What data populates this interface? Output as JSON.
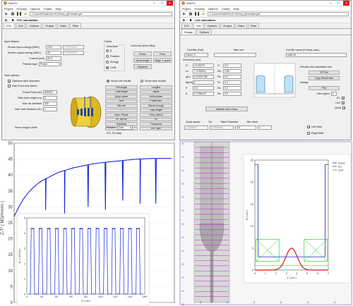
{
  "left": {
    "title": "DemTL",
    "menu": [
      "Project",
      "Process",
      "Options",
      "Charts",
      "Help"
    ],
    "path": "C:\\Users\\Public\\DemTL\\Setup_g\\Example.gdf",
    "section": "DTL calculation",
    "tabs": [
      "DTL",
      "Cell",
      "Options",
      "Output",
      "Data",
      "Files"
    ],
    "input_beams": "Input Beams",
    "kin_in_label": "Kinetic input energy (MeV)",
    "kin_in": "3.50",
    "kin_in_b": "0.28759000",
    "kin_out_label": "Kinetic output energy (MeV)",
    "kin_out": "40",
    "kin_out_b": "0.28053923",
    "current_label": "Current (mA)",
    "current": "62.5",
    "particle_label": "Particle type",
    "particle": "Proton",
    "charts": "Charts",
    "abscisse": "Abscisse",
    "abscisse_opts": [
      "β",
      "Position",
      "Energy",
      "Cells"
    ],
    "cell_lens": "Cell Lens (from files)",
    "cell_lens_btns": [
      "Phase",
      "Field",
      "Quad length",
      "Magn. L quad",
      "Kilpatrick",
      ""
    ],
    "tank_options": "Tank options",
    "opt_tank": "Optimize tank diameter",
    "add_stems": "Add Front end stems",
    "power_label": "Power/Tank (W)",
    "power": "000000",
    "max_len_label": "Max tank length (m)",
    "max_len": "8",
    "max_cell_label": "Max nb cell/tank",
    "max_cell": "300",
    "inter_label": "Inter tank distance (2l x l)",
    "inter": "1",
    "stem_label": "Stem Height Limits",
    "show_cell": "Show cell results",
    "show_tank": "Show tank results",
    "result_btns": [
      "Cell length",
      "Lengths",
      "Tube length",
      "Alpha",
      "Quad space",
      "Delta phase",
      "Drift",
      "Phase adv.",
      "Nbr cell",
      "Stored energy",
      "?",
      "Gap length",
      "Sync. Phase",
      "Freq. (stem)",
      "Ph. adv.ch",
      "Eo",
      "Kilpatrick",
      "Frequency",
      "Eo",
      "Acc. gain"
    ],
    "powers_label": "Powers",
    "powers": "Total",
    "dtl_map": "DTL Eo Map"
  },
  "right": {
    "title": "DemTL",
    "menu": [
      "Project",
      "Process",
      "Options",
      "Charts",
      "Help"
    ],
    "path": "C:\\Users\\Public\\DemTL\\Setup_g\\Example.gdf",
    "section": "Cell calculation",
    "tabs": [
      "DTL",
      "Cell",
      "Options",
      "Output",
      "Data",
      "Files"
    ],
    "design_tabs": [
      "Design",
      "Options"
    ],
    "cell_title": "Cell title (Full)",
    "cell_title_val": "Calcul_3",
    "filter_label": "filter cell",
    "file_name_label": "Cell file name (6 chars max)",
    "file_name_val": "cell0.fsf",
    "geometry": "Geometry (cm)",
    "geo": [
      [
        "D",
        "24.03075",
        "G",
        "0.0"
      ],
      [
        "Lc",
        "7.4788032",
        "Rb",
        "0.65"
      ],
      [
        "g/Lc",
        "0.22001798",
        "Rs",
        "0.2"
      ],
      [
        "Alpha",
        "0",
        "Ri",
        "0.2"
      ],
      [
        "F",
        "0.2",
        "Rc",
        "0.2"
      ],
      [
        "d",
        "5.7286148",
        "Ro",
        "0.5"
      ]
    ],
    "validate": "Validate cell & Save",
    "results_label": "Results last calculated cell",
    "sf_plot": "SF Plot",
    "copy_result": "Copy Result files",
    "design_label": "Design",
    "plot_btn": "Plot",
    "nbr_region_label": "Nbr region",
    "nbr_region": "1",
    "eo": "Eo",
    "cell": "Cell",
    "quad": "Quad",
    "stem_cols": [
      "Quad space",
      "Do",
      "Stem Diameter",
      "Nbr stem"
    ],
    "stem_vals": [
      "1.3288447",
      "0.2950000",
      "3.5",
      "1"
    ],
    "left_wall": "Left Wall",
    "right_wall": "Right Wall"
  },
  "chart_data": [
    {
      "type": "line",
      "ylabel": "ZₜT² ( MΩ/mm/m )",
      "ylim": [
        0,
        50
      ],
      "yticks": [
        0,
        5,
        10,
        15,
        20,
        25,
        30,
        35,
        40,
        45,
        50
      ],
      "color": "#1428d8",
      "x": [
        0,
        3,
        6,
        9,
        12,
        15,
        18,
        20,
        22,
        24,
        26,
        28,
        30,
        32,
        34,
        36,
        38,
        40,
        42,
        44,
        46,
        48,
        50,
        53,
        56,
        60,
        64,
        68,
        72,
        76,
        80,
        84,
        88,
        92,
        96,
        100
      ],
      "values": [
        27,
        30,
        32.5,
        34.5,
        36,
        37.3,
        38.3,
        38.8,
        39.3,
        39.8,
        40.3,
        40.8,
        41.1,
        41.4,
        41.7,
        42,
        42.3,
        42.5,
        42.7,
        42.9,
        43.1,
        43.3,
        43.5,
        43.7,
        43.9,
        44.1,
        44.3,
        44.5,
        44.7,
        44.9,
        45,
        45.1,
        45.2,
        45.2,
        45.2,
        45.2
      ],
      "dips_at": [
        20,
        32,
        47,
        58,
        69,
        80,
        90
      ],
      "dip_to": [
        29,
        27,
        30,
        29,
        32,
        31,
        31
      ]
    },
    {
      "type": "line",
      "ylabel": "E₀ ( MV/m )",
      "xlabel": "Z ( cm )",
      "ylim": [
        0,
        5
      ],
      "yticks": [
        0,
        1,
        2,
        3,
        4,
        5
      ],
      "xticks": [
        0,
        20,
        40,
        60,
        80,
        100,
        120,
        140,
        160
      ],
      "color": "#1428d8",
      "peak": 4.3,
      "cells": 14
    },
    {
      "type": "line",
      "ylabel": "R ( cm )",
      "xlabel": "Z ( cm )",
      "xlim": [
        0,
        7
      ],
      "ylim": [
        0,
        25
      ],
      "yticks": [
        0,
        5,
        10,
        15,
        20,
        25
      ],
      "xticks": [
        0,
        1,
        2,
        3,
        4,
        5,
        6,
        7
      ],
      "legend": [
        "Quad",
        "Eo",
        "Cell"
      ],
      "legend_colors": [
        "#1428d8",
        "#d81414",
        "#14c814"
      ]
    }
  ]
}
